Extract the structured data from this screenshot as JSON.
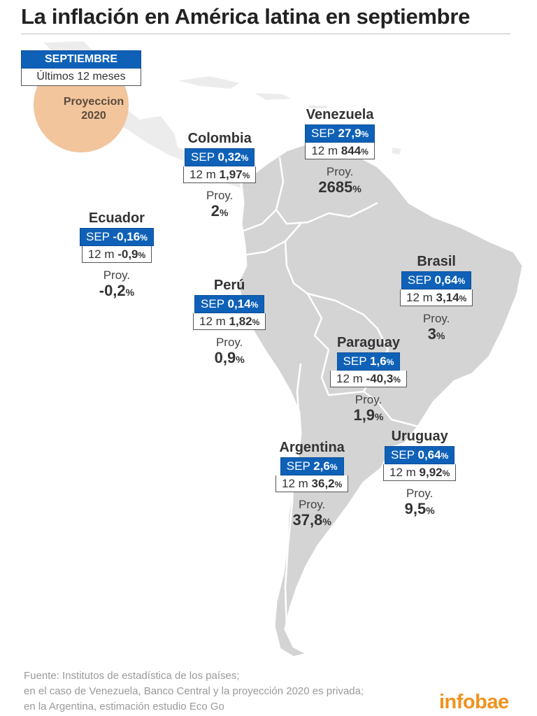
{
  "title": "La inflación en América latina en septiembre",
  "legend": {
    "sep_label": "SEPTIEMBRE",
    "twelve_label": "Últimos 12 meses",
    "proj_line1": "Proyeccion",
    "proj_line2": "2020"
  },
  "countries": {
    "venezuela": {
      "name": "Venezuela",
      "sep_prefix": "SEP",
      "sep_value": "27,9",
      "m12_prefix": "12 m",
      "m12_value": "844",
      "proj_label": "Proy.",
      "proj_value": "2685",
      "unit": "%"
    },
    "colombia": {
      "name": "Colombia",
      "sep_prefix": "SEP",
      "sep_value": "0,32",
      "m12_prefix": "12 m",
      "m12_value": "1,97",
      "proj_label": "Proy.",
      "proj_value": "2",
      "unit": "%"
    },
    "ecuador": {
      "name": "Ecuador",
      "sep_prefix": "SEP",
      "sep_value": "-0,16",
      "m12_prefix": "12 m",
      "m12_value": "-0,9",
      "proj_label": "Proy.",
      "proj_value": "-0,2",
      "unit": "%"
    },
    "brasil": {
      "name": "Brasil",
      "sep_prefix": "SEP",
      "sep_value": "0,64",
      "m12_prefix": "12 m",
      "m12_value": "3,14",
      "proj_label": "Proy.",
      "proj_value": "3",
      "unit": "%"
    },
    "peru": {
      "name": "Perú",
      "sep_prefix": "SEP",
      "sep_value": "0,14",
      "m12_prefix": "12 m",
      "m12_value": "1,82",
      "proj_label": "Proy.",
      "proj_value": "0,9",
      "unit": "%"
    },
    "paraguay": {
      "name": "Paraguay",
      "sep_prefix": "SEP",
      "sep_value": "1,6",
      "m12_prefix": "12 m",
      "m12_value": "-40,3",
      "proj_label": "Proy.",
      "proj_value": "1,9",
      "unit": "%"
    },
    "uruguay": {
      "name": "Uruguay",
      "sep_prefix": "SEP",
      "sep_value": "0,64",
      "m12_prefix": "12 m",
      "m12_value": "9,92",
      "proj_label": "Proy.",
      "proj_value": "9,5",
      "unit": "%"
    },
    "argentina": {
      "name": "Argentina",
      "sep_prefix": "SEP",
      "sep_value": "2,6",
      "m12_prefix": "12 m",
      "m12_value": "36,2",
      "proj_label": "Proy.",
      "proj_value": "37,8",
      "unit": "%"
    }
  },
  "source": {
    "line1": "Fuente: Institutos de estadística de los países;",
    "line2": "en el caso de Venezuela, Banco Central y la proyección 2020 es privada;",
    "line3": "en la Argentina, estimación estudio Eco Go"
  },
  "logo": "infobae",
  "colors": {
    "sep_box": "#0f61b8",
    "land": "#d4d4d4",
    "land_light": "#ececec",
    "legend_circle": "#f2c59c",
    "logo": "#f0921d"
  }
}
